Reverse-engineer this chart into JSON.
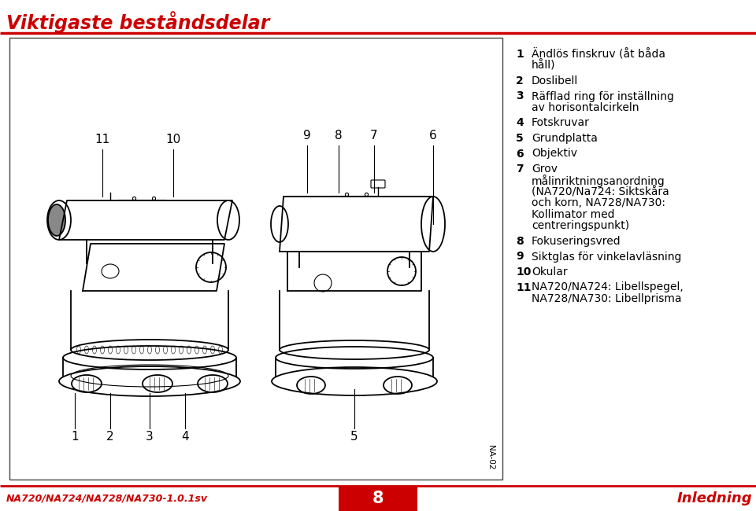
{
  "title": "Viktigaste beståndsdelar",
  "title_color": "#cc0000",
  "background": "#ffffff",
  "border_color": "#555555",
  "footer_left": "NA720/NA724/NA728/NA730-1.0.1sv",
  "footer_center": "8",
  "footer_right": "Inledning",
  "na_label": "NA-02",
  "list_items": [
    {
      "num": "1",
      "text": "Ändlös finskruv (åt båda\nhåll)"
    },
    {
      "num": "2",
      "text": "Doslibell"
    },
    {
      "num": "3",
      "text": "Räfflad ring för inställning\nav horisontalcirkeln"
    },
    {
      "num": "4",
      "text": "Fotskruvar"
    },
    {
      "num": "5",
      "text": "Grundplatta"
    },
    {
      "num": "6",
      "text": "Objektiv"
    },
    {
      "num": "7",
      "text": "Grov\nmålinriktningsanordning\n(NA720/Na724: Siktskåra\noch korn, NA728/NA730:\nKollimator med\ncentreringspunkt)"
    },
    {
      "num": "8",
      "text": "Fokuseringsvred"
    },
    {
      "num": "9",
      "text": "Siktglas för vinkelavläsning"
    },
    {
      "num": "10",
      "text": "Okular"
    },
    {
      "num": "11",
      "text": "NA720/NA724: Libellspegel,\nNA728/NA730: Libellprisma"
    }
  ]
}
